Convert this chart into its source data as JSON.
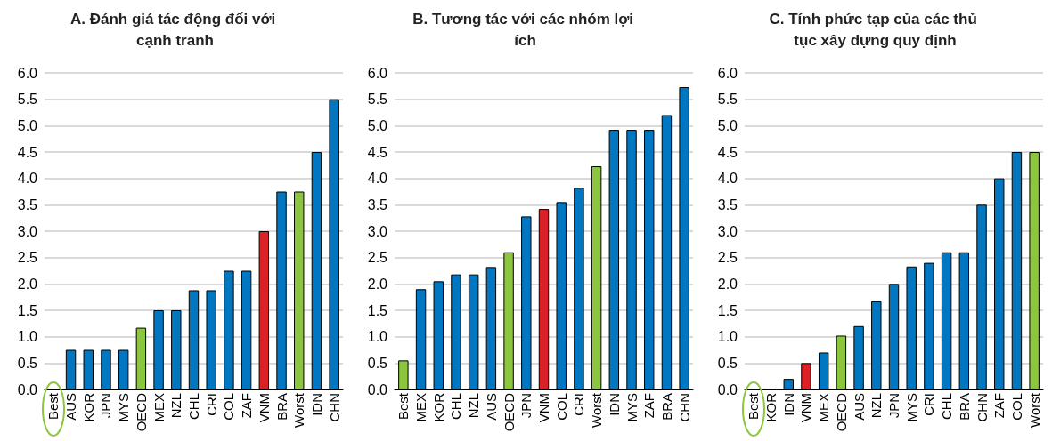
{
  "chart_data": [
    {
      "type": "bar",
      "title": "A. Đánh giá tác động đối với cạnh tranh",
      "categories": [
        "Best",
        "AUS",
        "KOR",
        "JPN",
        "MYS",
        "OECD",
        "MEX",
        "NZL",
        "CHL",
        "CRI",
        "COL",
        "ZAF",
        "VNM",
        "BRA",
        "Worst",
        "IDN",
        "CHN"
      ],
      "values": [
        0,
        0.75,
        0.75,
        0.75,
        0.75,
        1.17,
        1.5,
        1.5,
        1.88,
        1.88,
        2.25,
        2.25,
        3.0,
        3.75,
        3.75,
        4.5,
        5.5
      ],
      "colors": [
        "#8cc63f",
        "#0077c0",
        "#0077c0",
        "#0077c0",
        "#0077c0",
        "#8cc63f",
        "#0077c0",
        "#0077c0",
        "#0077c0",
        "#0077c0",
        "#0077c0",
        "#0077c0",
        "#da2128",
        "#0077c0",
        "#8cc63f",
        "#0077c0",
        "#0077c0"
      ],
      "ylim": [
        0,
        6
      ],
      "yticks": [
        {
          "value": 0,
          "label": "0.0"
        },
        0.5,
        {
          "value": 1,
          "label": "1.0"
        },
        1.5,
        {
          "value": 2,
          "label": "2.0"
        },
        2.5,
        {
          "value": 3,
          "label": "3.0"
        },
        3.5,
        {
          "value": 4,
          "label": "4.0"
        },
        4.5,
        {
          "value": 5,
          "label": "5.0"
        },
        5.5,
        {
          "value": 6,
          "label": "6.0"
        }
      ],
      "grid": "y"
    },
    {
      "type": "bar",
      "title": "B. Tương tác với các nhóm lợi ích",
      "categories": [
        "Best",
        "MEX",
        "KOR",
        "CHL",
        "NZL",
        "AUS",
        "OECD",
        "JPN",
        "VNM",
        "COL",
        "CRI",
        "Worst",
        "IDN",
        "MYS",
        "ZAF",
        "BRA",
        "CHN"
      ],
      "values": [
        0.55,
        1.9,
        2.05,
        2.18,
        2.18,
        2.32,
        2.6,
        3.28,
        3.42,
        3.55,
        3.82,
        4.23,
        4.92,
        4.92,
        4.92,
        5.2,
        5.73
      ],
      "colors": [
        "#8cc63f",
        "#0077c0",
        "#0077c0",
        "#0077c0",
        "#0077c0",
        "#0077c0",
        "#8cc63f",
        "#0077c0",
        "#da2128",
        "#0077c0",
        "#0077c0",
        "#8cc63f",
        "#0077c0",
        "#0077c0",
        "#0077c0",
        "#0077c0",
        "#0077c0"
      ],
      "ylim": [
        0,
        6
      ],
      "yticks": [
        {
          "value": 0,
          "label": "0.0"
        },
        0.5,
        {
          "value": 1,
          "label": "1.0"
        },
        1.5,
        {
          "value": 2,
          "label": "2.0"
        },
        2.5,
        {
          "value": 3,
          "label": "3.0"
        },
        3.5,
        {
          "value": 4,
          "label": "4.0"
        },
        4.5,
        {
          "value": 5,
          "label": "5.0"
        },
        5.5,
        {
          "value": 6,
          "label": "6.0"
        }
      ],
      "grid": "y"
    },
    {
      "type": "bar",
      "title": "C. Tính phức tạp của các thủ tục xây dựng quy định",
      "categories": [
        "Best",
        "KOR",
        "IDN",
        "VNM",
        "MEX",
        "OECD",
        "AUS",
        "NZL",
        "JPN",
        "MYS",
        "CRI",
        "CHL",
        "BRA",
        "CHN",
        "ZAF",
        "COL",
        "Worst"
      ],
      "values": [
        0,
        0,
        0.2,
        0.5,
        0.7,
        1.02,
        1.2,
        1.67,
        2.0,
        2.33,
        2.4,
        2.6,
        2.6,
        3.5,
        4.0,
        4.5,
        4.5
      ],
      "colors": [
        "#8cc63f",
        "#0077c0",
        "#0077c0",
        "#da2128",
        "#0077c0",
        "#8cc63f",
        "#0077c0",
        "#0077c0",
        "#0077c0",
        "#0077c0",
        "#0077c0",
        "#0077c0",
        "#0077c0",
        "#0077c0",
        "#0077c0",
        "#0077c0",
        "#8cc63f"
      ],
      "ylim": [
        0,
        6
      ],
      "yticks": [
        {
          "value": 0,
          "label": "0.0"
        },
        0.5,
        {
          "value": 1,
          "label": "1.0"
        },
        1.5,
        {
          "value": 2,
          "label": "2.0"
        },
        2.5,
        {
          "value": 3,
          "label": "3.0"
        },
        3.5,
        {
          "value": 4,
          "label": "4.0"
        },
        4.5,
        {
          "value": 5,
          "label": "5.0"
        },
        5.5,
        {
          "value": 6,
          "label": "6.0"
        }
      ],
      "grid": "y"
    }
  ]
}
